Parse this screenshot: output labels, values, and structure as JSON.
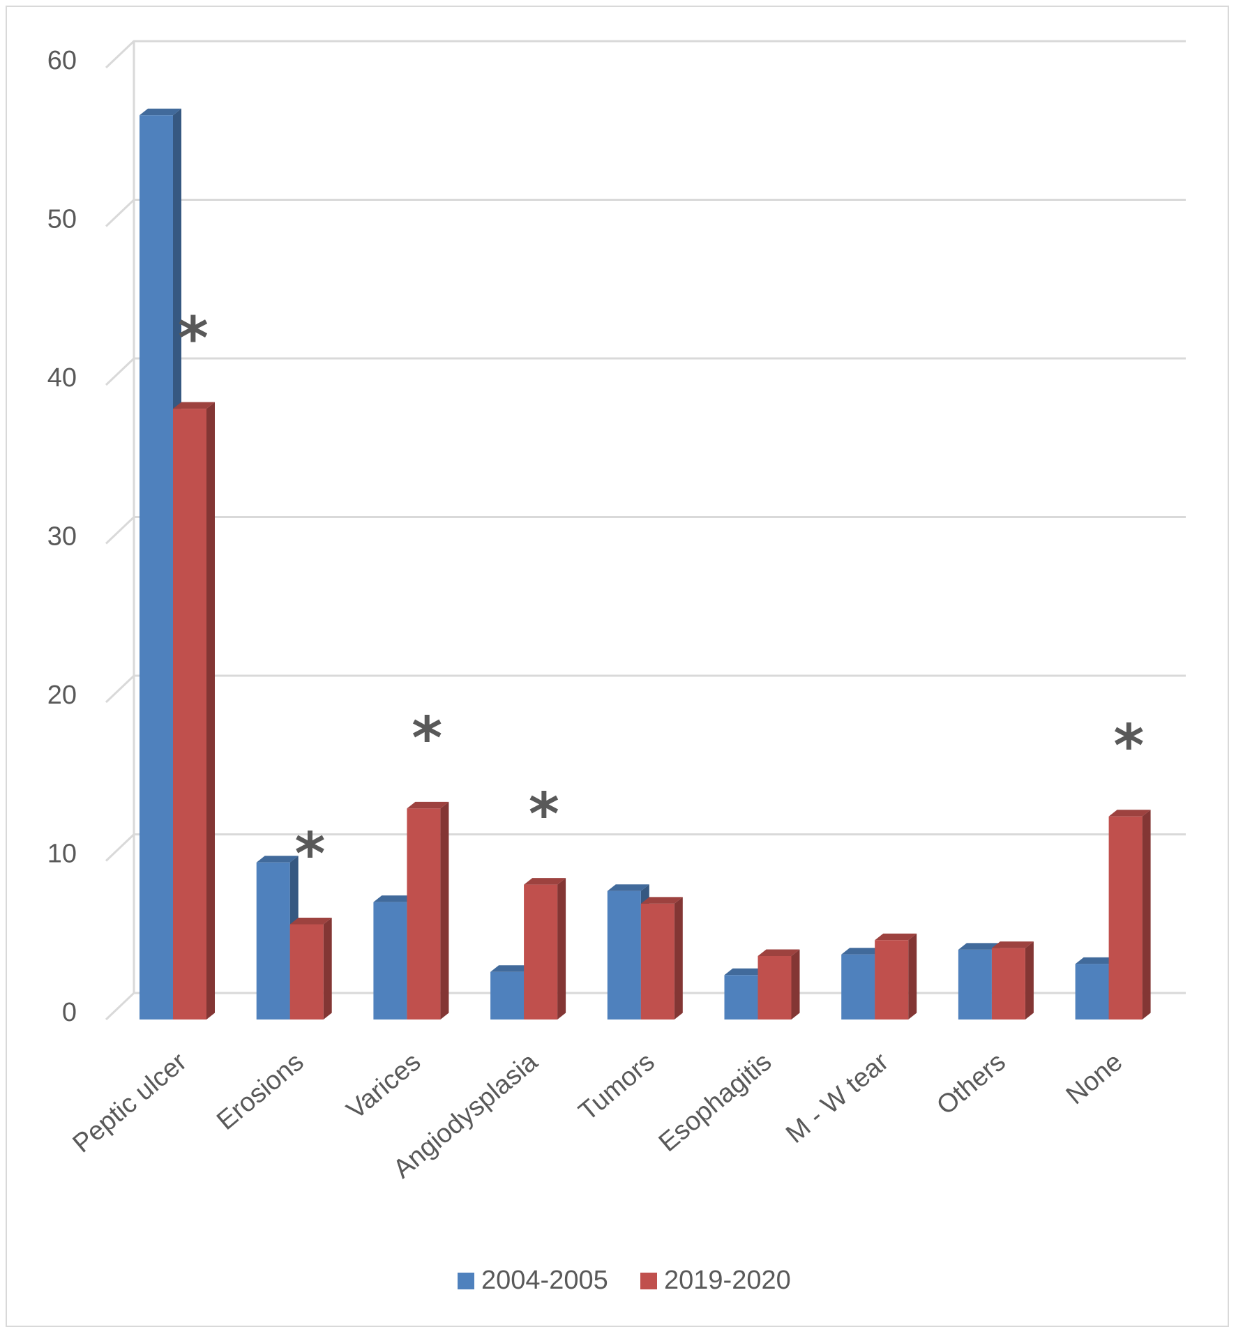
{
  "chart_data": {
    "type": "bar",
    "categories": [
      "Peptic ulcer",
      "Erosions",
      "Varices",
      "Angiodysplasia",
      "Tumors",
      "Esophagitis",
      "M - W tear",
      "Others",
      "None"
    ],
    "series": [
      {
        "name": "2004-2005",
        "values": [
          57,
          9.9,
          7.4,
          3.0,
          8.1,
          2.8,
          4.1,
          4.4,
          3.5
        ],
        "color": "#4f81bd"
      },
      {
        "name": "2019-2020",
        "values": [
          38.5,
          6.0,
          13.3,
          8.5,
          7.3,
          4.0,
          5.0,
          4.5,
          12.8
        ],
        "color": "#c0504d"
      }
    ],
    "significance_marker": "*",
    "significant_categories": [
      "Peptic ulcer",
      "Erosions",
      "Varices",
      "Angiodysplasia",
      "None"
    ],
    "ylim": [
      0,
      60
    ],
    "y_ticks": [
      "0",
      "10",
      "20",
      "30",
      "40",
      "50",
      "60"
    ],
    "title": "",
    "xlabel": "",
    "ylabel": "",
    "grid": "horizontal",
    "legend_position": "bottom",
    "style": "3d-column"
  }
}
